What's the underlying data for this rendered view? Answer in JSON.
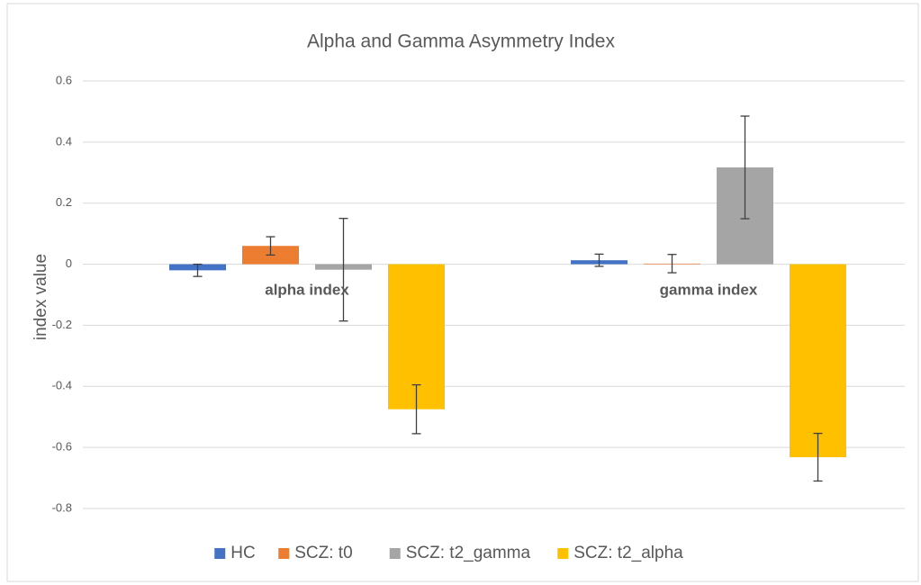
{
  "chart_data": {
    "type": "bar",
    "title": "Alpha and Gamma Asymmetry Index",
    "ylabel": "index value",
    "categories": [
      "alpha index",
      "gamma index"
    ],
    "series": [
      {
        "name": "HC",
        "color": "#4472c4",
        "values": [
          -0.02,
          0.013
        ],
        "errors": [
          0.02,
          0.02
        ]
      },
      {
        "name": "SCZ: t0",
        "color": "#ed7d31",
        "values": [
          0.06,
          0.002
        ],
        "errors": [
          0.03,
          0.03
        ]
      },
      {
        "name": "SCZ: t2_gamma",
        "color": "#a5a5a5",
        "values": [
          -0.018,
          0.317
        ],
        "errors": [
          0.168,
          0.168
        ]
      },
      {
        "name": "SCZ: t2_alpha",
        "color": "#ffc000",
        "values": [
          -0.475,
          -0.632
        ],
        "errors": [
          0.08,
          0.078
        ]
      }
    ],
    "ylim": [
      -0.8,
      0.6
    ],
    "yticks": [
      -0.8,
      -0.6,
      -0.4,
      -0.2,
      0,
      0.2,
      0.4,
      0.6
    ],
    "grid": true,
    "legend": "bottom"
  }
}
